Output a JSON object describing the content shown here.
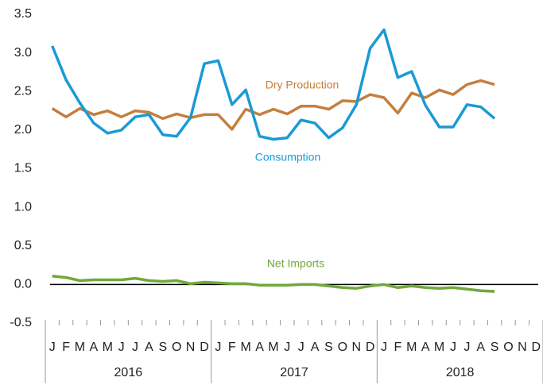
{
  "chart_data": {
    "type": "line",
    "categories": [
      "J",
      "F",
      "M",
      "A",
      "M",
      "J",
      "J",
      "A",
      "S",
      "O",
      "N",
      "D",
      "J",
      "F",
      "M",
      "A",
      "M",
      "J",
      "J",
      "A",
      "S",
      "O",
      "N",
      "D",
      "J",
      "F",
      "M",
      "A",
      "M",
      "J",
      "J",
      "A",
      "S",
      "O",
      "N",
      "D"
    ],
    "year_groups": [
      "2016",
      "2017",
      "2018"
    ],
    "series": [
      {
        "name": "Dry Production",
        "color": "#c47f3e",
        "values": [
          2.28,
          2.17,
          2.28,
          2.2,
          2.25,
          2.17,
          2.25,
          2.23,
          2.15,
          2.21,
          2.16,
          2.2,
          2.2,
          2.01,
          2.27,
          2.2,
          2.27,
          2.21,
          2.31,
          2.31,
          2.27,
          2.38,
          2.37,
          2.46,
          2.42,
          2.22,
          2.48,
          2.42,
          2.52,
          2.46,
          2.59,
          2.64,
          2.59,
          null,
          null,
          null
        ]
      },
      {
        "name": "Consumption",
        "color": "#1a9ad6",
        "values": [
          3.09,
          2.65,
          2.35,
          2.09,
          1.96,
          2.0,
          2.17,
          2.2,
          1.94,
          1.92,
          2.16,
          2.86,
          2.9,
          2.33,
          2.52,
          1.92,
          1.88,
          1.9,
          2.13,
          2.09,
          1.9,
          2.03,
          2.33,
          3.06,
          3.3,
          2.68,
          2.76,
          2.32,
          2.04,
          2.04,
          2.33,
          2.3,
          2.15,
          null,
          null,
          null
        ]
      },
      {
        "name": "Net Imports",
        "color": "#70a83b",
        "values": [
          0.11,
          0.09,
          0.05,
          0.06,
          0.06,
          0.06,
          0.08,
          0.05,
          0.04,
          0.05,
          0.01,
          0.03,
          0.02,
          0.01,
          0.01,
          -0.01,
          -0.01,
          -0.01,
          0,
          0,
          -0.02,
          -0.04,
          -0.05,
          -0.02,
          0,
          -0.04,
          -0.02,
          -0.04,
          -0.05,
          -0.04,
          -0.06,
          -0.08,
          -0.09,
          null,
          null,
          null
        ]
      }
    ],
    "ylim": [
      -0.5,
      3.5
    ],
    "yticks": [
      -0.5,
      {
        "value": 0,
        "label": "0.0"
      },
      0.5,
      {
        "value": 1,
        "label": "1.0"
      },
      1.5,
      {
        "value": 2,
        "label": "2.0"
      },
      2.5,
      {
        "value": 3,
        "label": "3.0"
      },
      3.5
    ]
  }
}
